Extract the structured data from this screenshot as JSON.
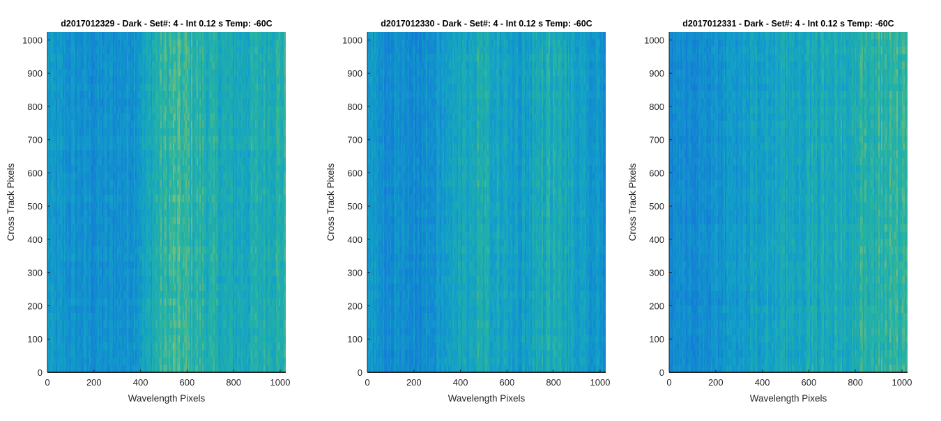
{
  "chart_data": [
    {
      "type": "heatmap",
      "title": "d2017012329 - Dark - Set#: 4 - Int 0.12 s Temp: -60C",
      "xlabel": "Wavelength Pixels",
      "ylabel": "Cross Track Pixels",
      "xlim": [
        0,
        1024
      ],
      "ylim": [
        0,
        1024
      ],
      "xticks": [
        0,
        200,
        400,
        600,
        800,
        1000
      ],
      "yticks": [
        0,
        100,
        200,
        300,
        400,
        500,
        600,
        700,
        800,
        900,
        1000
      ],
      "colormap": "parula",
      "column_intensity": [
        0.28,
        0.25,
        0.22,
        0.2,
        0.2,
        0.22,
        0.26,
        0.38,
        0.56,
        0.62,
        0.6,
        0.55,
        0.48,
        0.44,
        0.46,
        0.5,
        0.52,
        0.55
      ]
    },
    {
      "type": "heatmap",
      "title": "d2017012330 - Dark - Set#: 4 - Int 0.12 s Temp: -60C",
      "xlabel": "Wavelength Pixels",
      "ylabel": "Cross Track Pixels",
      "xlim": [
        0,
        1024
      ],
      "ylim": [
        0,
        1024
      ],
      "xticks": [
        0,
        200,
        400,
        600,
        800,
        1000
      ],
      "yticks": [
        0,
        100,
        200,
        300,
        400,
        500,
        600,
        700,
        800,
        900,
        1000
      ],
      "colormap": "parula",
      "column_intensity": [
        0.3,
        0.22,
        0.18,
        0.16,
        0.18,
        0.26,
        0.35,
        0.42,
        0.48,
        0.44,
        0.36,
        0.32,
        0.42,
        0.5,
        0.44,
        0.34,
        0.26,
        0.22
      ]
    },
    {
      "type": "heatmap",
      "title": "d2017012331 - Dark - Set#: 4 - Int 0.12 s Temp: -60C",
      "xlabel": "Wavelength Pixels",
      "ylabel": "Cross Track Pixels",
      "xlim": [
        0,
        1024
      ],
      "ylim": [
        0,
        1024
      ],
      "xticks": [
        0,
        200,
        400,
        600,
        800,
        1000
      ],
      "yticks": [
        0,
        100,
        200,
        300,
        400,
        500,
        600,
        700,
        800,
        900,
        1000
      ],
      "colormap": "parula",
      "column_intensity": [
        0.14,
        0.16,
        0.18,
        0.22,
        0.26,
        0.3,
        0.34,
        0.38,
        0.4,
        0.42,
        0.44,
        0.46,
        0.48,
        0.5,
        0.52,
        0.55,
        0.6,
        0.62
      ]
    }
  ],
  "colors": {
    "axis": "#262626",
    "colormap_low": "#1a7fd4",
    "colormap_mid": "#1fb0a8",
    "colormap_high": "#c8c860"
  }
}
